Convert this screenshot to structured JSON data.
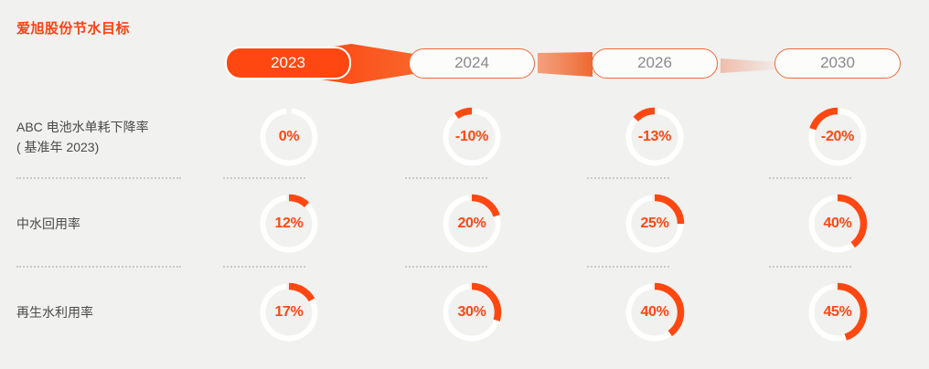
{
  "title": "爱旭股份节水目标",
  "colors": {
    "accent": "#FF4712",
    "background": "#F1F1EF",
    "ring": "#FFFFFF",
    "pill_border": "#EE6A3A",
    "inactive_year_text": "#8A8A8E",
    "label_text": "#4A4A4C"
  },
  "timeline": {
    "years": [
      {
        "label": "2023",
        "active": true
      },
      {
        "label": "2024",
        "active": false
      },
      {
        "label": "2026",
        "active": false
      },
      {
        "label": "2030",
        "active": false
      }
    ]
  },
  "chart_data": {
    "type": "pie",
    "subtype": "donut-gauge-grid",
    "title": "爱旭股份节水目标",
    "columns": [
      "2023",
      "2024",
      "2026",
      "2030"
    ],
    "rows": [
      {
        "label_lines": [
          "ABC 电池水单耗下降率",
          "( 基准年 2023)"
        ],
        "values_pct": [
          0,
          -10,
          -13,
          -20
        ],
        "display": [
          "0%",
          "-10%",
          "-13%",
          "-20%"
        ]
      },
      {
        "label_lines": [
          "中水回用率"
        ],
        "values_pct": [
          12,
          20,
          25,
          40
        ],
        "display": [
          "12%",
          "20%",
          "25%",
          "40%"
        ]
      },
      {
        "label_lines": [
          "再生水利用率"
        ],
        "values_pct": [
          17,
          30,
          40,
          45
        ],
        "display": [
          "17%",
          "30%",
          "40%",
          "45%"
        ]
      }
    ]
  }
}
